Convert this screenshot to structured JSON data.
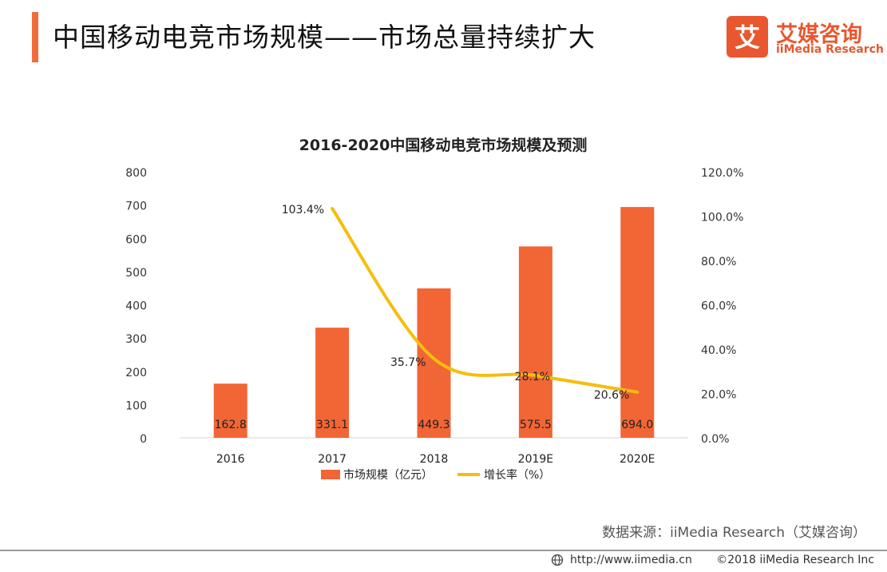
{
  "header": {
    "title": "中国移动电竞市场规模——市场总量持续扩大",
    "brand_name": "艾媒咨询",
    "brand_sub": "iiMedia Research",
    "brand_logo_glyph": "艾",
    "accent_color": "#f26b3a"
  },
  "chart_data": {
    "type": "bar",
    "title": "2016-2020中国移动电竞市场规模及预测",
    "categories": [
      "2016",
      "2017",
      "2018",
      "2019E",
      "2020E"
    ],
    "series": [
      {
        "name": "市场规模（亿元）",
        "kind": "bar",
        "axis": "left",
        "color": "#f26534",
        "values": [
          162.8,
          331.1,
          449.3,
          575.5,
          694.0
        ],
        "labels": [
          "162.8",
          "331.1",
          "449.3",
          "575.5",
          "694.0"
        ]
      },
      {
        "name": "增长率（%）",
        "kind": "line",
        "axis": "right",
        "color": "#f5bd0f",
        "values": [
          null,
          103.4,
          35.7,
          28.1,
          20.6
        ],
        "labels": [
          "",
          "103.4%",
          "35.7%",
          "28.1%",
          "20.6%"
        ]
      }
    ],
    "y_left": {
      "min": 0,
      "max": 800,
      "ticks": [
        "0",
        "100",
        "200",
        "300",
        "400",
        "500",
        "600",
        "700",
        "800"
      ]
    },
    "y_right": {
      "min": 0,
      "max": 120,
      "ticks": [
        "0.0%",
        "20.0%",
        "40.0%",
        "60.0%",
        "80.0%",
        "100.0%",
        "120.0%"
      ]
    },
    "legend_position": "bottom-center",
    "grid": false
  },
  "footer": {
    "source": "数据来源：iiMedia Research（艾媒咨询）",
    "url": "http://www.iimedia.cn",
    "copyright": "©2018  iiMedia Research  Inc"
  }
}
